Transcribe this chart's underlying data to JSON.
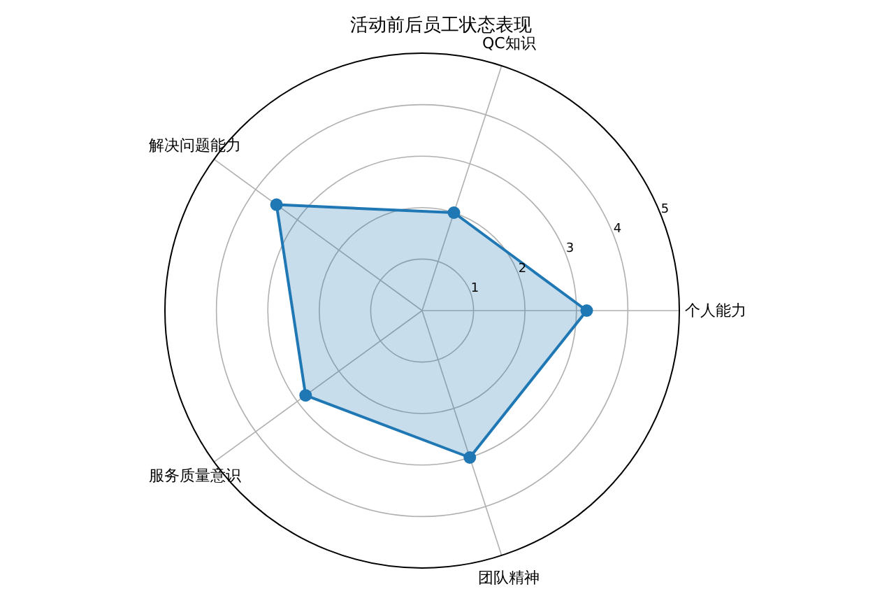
{
  "chart_data": {
    "type": "radar",
    "title": "活动前后员工状态表现",
    "categories": [
      "QC知识",
      "个人能力",
      "团队精神",
      "服务质量意识",
      "解决问题能力"
    ],
    "series": [
      {
        "color": "#1f77b4",
        "values": [
          2,
          3.2,
          3,
          2.8,
          3.5
        ]
      }
    ],
    "ylim": [
      0,
      5
    ],
    "yticks": [
      1,
      2,
      3,
      4,
      5
    ],
    "grid": true,
    "marker": "circle"
  }
}
